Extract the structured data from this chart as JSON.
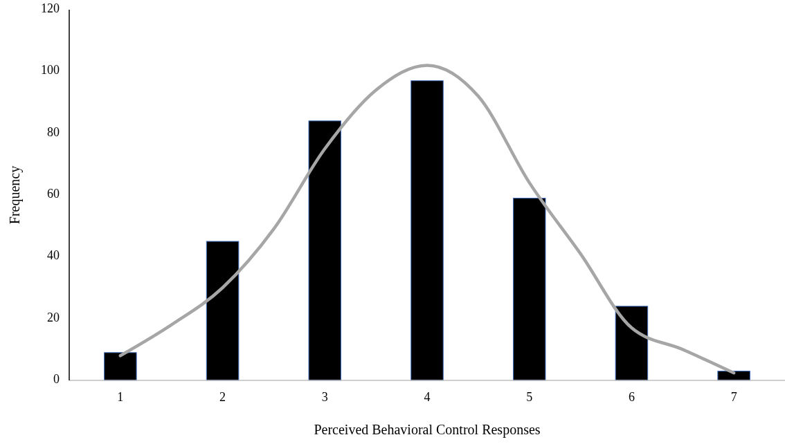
{
  "chart_data": {
    "type": "bar",
    "xlabel": "Perceived Behavioral Control Responses",
    "ylabel": "Frequency",
    "x": [
      1,
      2,
      3,
      4,
      5,
      6,
      7
    ],
    "xlim": [
      0.5,
      7.5
    ],
    "xticks": [
      1,
      2,
      3,
      4,
      5,
      6,
      7
    ],
    "ylim": [
      0,
      120
    ],
    "yticks": [
      0,
      20,
      40,
      60,
      80,
      100,
      120
    ],
    "grid": false,
    "series": [
      {
        "color": "#000000",
        "values": [
          9,
          45,
          84,
          97,
          59,
          24,
          3
        ]
      },
      {
        "type": "line",
        "color": "#a6a6a6",
        "x": [
          1,
          1.5,
          2,
          2.5,
          3,
          3.5,
          4,
          4.5,
          5,
          5.5,
          6,
          6.5,
          7
        ],
        "values": [
          8,
          18,
          30,
          49,
          75,
          94,
          102,
          92,
          64,
          41,
          17,
          10,
          2.4
        ]
      }
    ]
  }
}
